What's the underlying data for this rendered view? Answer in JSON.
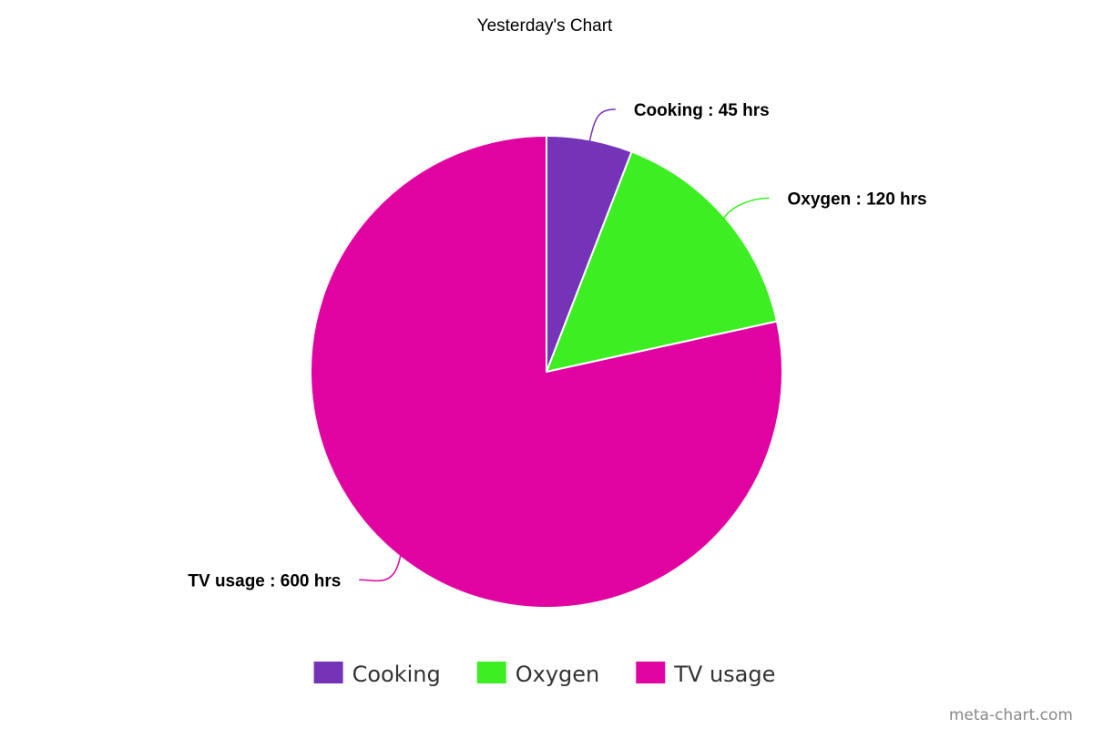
{
  "chart_data": {
    "type": "pie",
    "title": "Yesterday's Chart",
    "unit": "hrs",
    "slices": [
      {
        "label": "Cooking",
        "value": 45,
        "color": "#7533b8",
        "data_label": "Cooking : 45 hrs"
      },
      {
        "label": "Oxygen",
        "value": 120,
        "color": "#3def22",
        "data_label": "Oxygen : 120 hrs"
      },
      {
        "label": "TV usage",
        "value": 600,
        "color": "#e003a1",
        "data_label": "TV usage : 600 hrs"
      }
    ],
    "legend": {
      "placement": "bottom",
      "entries": [
        "Cooking",
        "Oxygen",
        "TV usage"
      ]
    }
  },
  "credit": "meta-chart.com"
}
